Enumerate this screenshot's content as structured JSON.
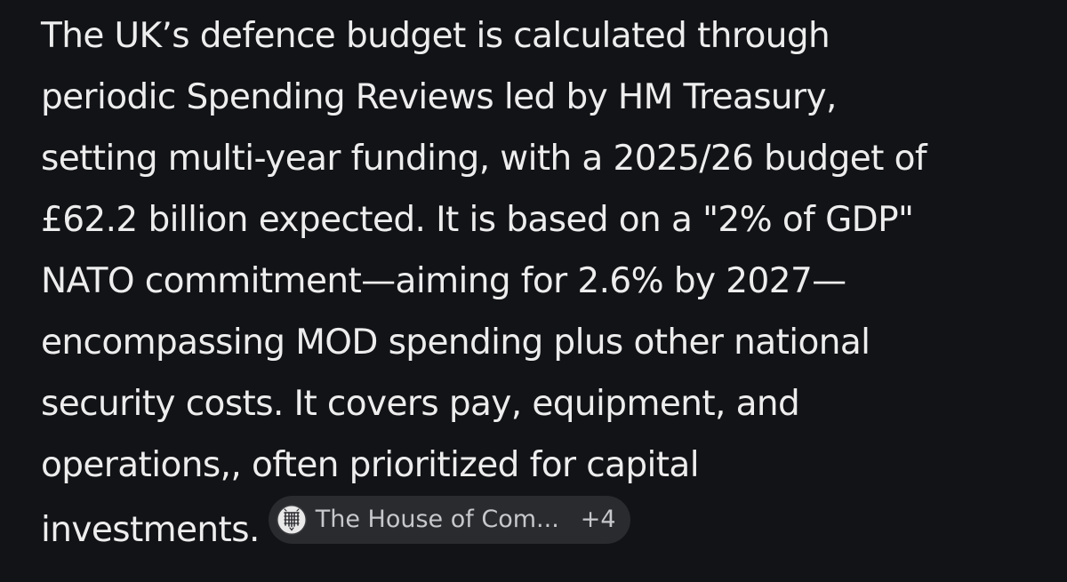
{
  "answer": {
    "lines": [
      "The UK’s defence budget is calculated through",
      "periodic Spending Reviews led by HM Treasury,",
      "setting multi-year funding, with a 2025/26 budget of",
      "£62.2 billion expected. It is based on a \"2% of GDP\"",
      "NATO commitment—aiming for 2.6% by 2027—",
      "encompassing MOD spending plus other national",
      "security costs. It covers pay, equipment, and",
      "operations,, often prioritized for capital",
      "investments."
    ]
  },
  "source_chip": {
    "icon": "portcullis-icon",
    "label": "The House of Com...",
    "count": "+4"
  },
  "colors": {
    "background": "#121316",
    "text": "#ededee",
    "chip_background": "#2a2b2f",
    "chip_text": "#c6c8cc"
  }
}
